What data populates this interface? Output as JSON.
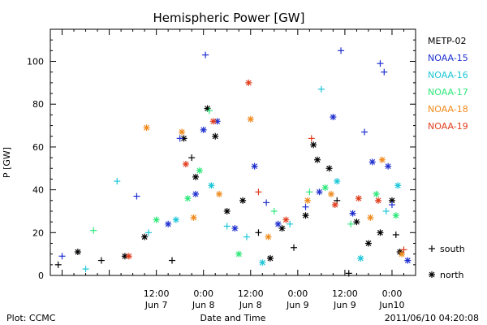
{
  "chart_data": {
    "type": "scatter",
    "title": "Hemispheric Power [GW]",
    "ylabel": "P [GW]",
    "xlabel": "Date and Time",
    "ylim": [
      0,
      115
    ],
    "xlim": [
      "2011-06-06 09:00",
      "2011-06-10 06:00"
    ],
    "y_ticks": [
      0,
      20,
      40,
      60,
      80,
      100
    ],
    "x_ticks": [
      {
        "time": "2011-06-07 12:00",
        "top": "12:00",
        "bottom": "Jun 7"
      },
      {
        "time": "2011-06-08 00:00",
        "top": "0:00",
        "bottom": "Jun 8"
      },
      {
        "time": "2011-06-08 12:00",
        "top": "12:00",
        "bottom": "Jun 8"
      },
      {
        "time": "2011-06-09 00:00",
        "top": "0:00",
        "bottom": "Jun 9"
      },
      {
        "time": "2011-06-09 12:00",
        "top": "12:00",
        "bottom": "Jun 9"
      },
      {
        "time": "2011-06-10 00:00",
        "top": "0:00",
        "bottom": "Jun10"
      }
    ],
    "legend": {
      "placement": "right"
    },
    "markers": {
      "south": "+",
      "north": "*"
    },
    "marker_legend": {
      "south": "south",
      "north": "north"
    },
    "series": [
      {
        "name": "METP-02",
        "color": "#000000",
        "points": [
          {
            "t": "2011-06-06 11:00",
            "v": 5,
            "h": "south"
          },
          {
            "t": "2011-06-06 16:00",
            "v": 11,
            "h": "north"
          },
          {
            "t": "2011-06-06 22:00",
            "v": 7,
            "h": "south"
          },
          {
            "t": "2011-06-07 04:00",
            "v": 9,
            "h": "north"
          },
          {
            "t": "2011-06-07 09:00",
            "v": 18,
            "h": "north"
          },
          {
            "t": "2011-06-07 16:00",
            "v": 7,
            "h": "south"
          },
          {
            "t": "2011-06-07 19:00",
            "v": 64,
            "h": "north"
          },
          {
            "t": "2011-06-07 21:00",
            "v": 55,
            "h": "south"
          },
          {
            "t": "2011-06-07 22:00",
            "v": 46,
            "h": "north"
          },
          {
            "t": "2011-06-08 01:00",
            "v": 78,
            "h": "north"
          },
          {
            "t": "2011-06-08 03:00",
            "v": 65,
            "h": "north"
          },
          {
            "t": "2011-06-08 06:00",
            "v": 30,
            "h": "north"
          },
          {
            "t": "2011-06-08 10:00",
            "v": 35,
            "h": "north"
          },
          {
            "t": "2011-06-08 14:00",
            "v": 20,
            "h": "south"
          },
          {
            "t": "2011-06-08 17:00",
            "v": 8,
            "h": "north"
          },
          {
            "t": "2011-06-08 20:00",
            "v": 22,
            "h": "north"
          },
          {
            "t": "2011-06-08 23:00",
            "v": 13,
            "h": "south"
          },
          {
            "t": "2011-06-09 02:00",
            "v": 28,
            "h": "north"
          },
          {
            "t": "2011-06-09 04:00",
            "v": 61,
            "h": "north"
          },
          {
            "t": "2011-06-09 05:00",
            "v": 54,
            "h": "north"
          },
          {
            "t": "2011-06-09 08:00",
            "v": 50,
            "h": "north"
          },
          {
            "t": "2011-06-09 10:00",
            "v": 35,
            "h": "south"
          },
          {
            "t": "2011-06-09 13:00",
            "v": 1,
            "h": "south"
          },
          {
            "t": "2011-06-09 15:00",
            "v": 25,
            "h": "north"
          },
          {
            "t": "2011-06-09 18:00",
            "v": 15,
            "h": "north"
          },
          {
            "t": "2011-06-09 21:00",
            "v": 20,
            "h": "north"
          },
          {
            "t": "2011-06-10 00:00",
            "v": 35,
            "h": "north"
          },
          {
            "t": "2011-06-10 01:00",
            "v": 19,
            "h": "south"
          },
          {
            "t": "2011-06-10 02:00",
            "v": 11,
            "h": "north"
          }
        ]
      },
      {
        "name": "NOAA-15",
        "color": "#1f2fcf",
        "points": [
          {
            "t": "2011-06-06 12:00",
            "v": 9,
            "h": "south"
          },
          {
            "t": "2011-06-07 07:00",
            "v": 37,
            "h": "south"
          },
          {
            "t": "2011-06-07 15:00",
            "v": 24,
            "h": "north"
          },
          {
            "t": "2011-06-07 18:00",
            "v": 64,
            "h": "south"
          },
          {
            "t": "2011-06-07 22:00",
            "v": 38,
            "h": "north"
          },
          {
            "t": "2011-06-08 00:00",
            "v": 68,
            "h": "north"
          },
          {
            "t": "2011-06-08 00:30",
            "v": 103,
            "h": "south"
          },
          {
            "t": "2011-06-08 03:30",
            "v": 72,
            "h": "north"
          },
          {
            "t": "2011-06-08 08:00",
            "v": 22,
            "h": "north"
          },
          {
            "t": "2011-06-08 13:00",
            "v": 51,
            "h": "north"
          },
          {
            "t": "2011-06-08 16:00",
            "v": 34,
            "h": "south"
          },
          {
            "t": "2011-06-08 19:00",
            "v": 24,
            "h": "north"
          },
          {
            "t": "2011-06-09 02:00",
            "v": 32,
            "h": "south"
          },
          {
            "t": "2011-06-09 05:30",
            "v": 39,
            "h": "north"
          },
          {
            "t": "2011-06-09 09:00",
            "v": 74,
            "h": "north"
          },
          {
            "t": "2011-06-09 11:00",
            "v": 105,
            "h": "south"
          },
          {
            "t": "2011-06-09 14:00",
            "v": 29,
            "h": "north"
          },
          {
            "t": "2011-06-09 17:00",
            "v": 67,
            "h": "south"
          },
          {
            "t": "2011-06-09 19:00",
            "v": 53,
            "h": "north"
          },
          {
            "t": "2011-06-09 21:00",
            "v": 99,
            "h": "south"
          },
          {
            "t": "2011-06-09 22:00",
            "v": 95,
            "h": "south"
          },
          {
            "t": "2011-06-09 23:00",
            "v": 51,
            "h": "north"
          },
          {
            "t": "2011-06-10 00:00",
            "v": 33,
            "h": "south"
          },
          {
            "t": "2011-06-10 04:00",
            "v": 7,
            "h": "north"
          }
        ]
      },
      {
        "name": "NOAA-16",
        "color": "#1cc6d8",
        "points": [
          {
            "t": "2011-06-06 18:00",
            "v": 3,
            "h": "south"
          },
          {
            "t": "2011-06-07 02:00",
            "v": 44,
            "h": "south"
          },
          {
            "t": "2011-06-07 10:00",
            "v": 20,
            "h": "south"
          },
          {
            "t": "2011-06-07 17:00",
            "v": 26,
            "h": "north"
          },
          {
            "t": "2011-06-08 02:00",
            "v": 42,
            "h": "north"
          },
          {
            "t": "2011-06-08 06:00",
            "v": 23,
            "h": "south"
          },
          {
            "t": "2011-06-08 11:00",
            "v": 18,
            "h": "south"
          },
          {
            "t": "2011-06-08 15:00",
            "v": 6,
            "h": "north"
          },
          {
            "t": "2011-06-08 22:00",
            "v": 24,
            "h": "south"
          },
          {
            "t": "2011-06-09 06:00",
            "v": 87,
            "h": "south"
          },
          {
            "t": "2011-06-09 10:00",
            "v": 44,
            "h": "north"
          },
          {
            "t": "2011-06-09 16:00",
            "v": 8,
            "h": "north"
          },
          {
            "t": "2011-06-09 22:30",
            "v": 30,
            "h": "south"
          },
          {
            "t": "2011-06-10 01:30",
            "v": 42,
            "h": "north"
          }
        ]
      },
      {
        "name": "NOAA-17",
        "color": "#2ee87a",
        "points": [
          {
            "t": "2011-06-06 20:00",
            "v": 21,
            "h": "south"
          },
          {
            "t": "2011-06-07 12:00",
            "v": 26,
            "h": "north"
          },
          {
            "t": "2011-06-07 20:00",
            "v": 36,
            "h": "north"
          },
          {
            "t": "2011-06-07 23:00",
            "v": 49,
            "h": "north"
          },
          {
            "t": "2011-06-08 01:30",
            "v": 77,
            "h": "south"
          },
          {
            "t": "2011-06-08 09:00",
            "v": 10,
            "h": "north"
          },
          {
            "t": "2011-06-08 18:00",
            "v": 30,
            "h": "south"
          },
          {
            "t": "2011-06-09 03:00",
            "v": 39,
            "h": "south"
          },
          {
            "t": "2011-06-09 07:00",
            "v": 41,
            "h": "north"
          },
          {
            "t": "2011-06-09 13:30",
            "v": 24,
            "h": "south"
          },
          {
            "t": "2011-06-09 20:00",
            "v": 38,
            "h": "north"
          },
          {
            "t": "2011-06-10 01:00",
            "v": 28,
            "h": "north"
          }
        ]
      },
      {
        "name": "NOAA-18",
        "color": "#f08a1c",
        "points": [
          {
            "t": "2011-06-07 09:30",
            "v": 69,
            "h": "north"
          },
          {
            "t": "2011-06-07 18:30",
            "v": 67,
            "h": "north"
          },
          {
            "t": "2011-06-07 21:30",
            "v": 27,
            "h": "north"
          },
          {
            "t": "2011-06-08 04:00",
            "v": 38,
            "h": "north"
          },
          {
            "t": "2011-06-08 12:00",
            "v": 73,
            "h": "north"
          },
          {
            "t": "2011-06-08 16:30",
            "v": 18,
            "h": "north"
          },
          {
            "t": "2011-06-09 02:30",
            "v": 35,
            "h": "north"
          },
          {
            "t": "2011-06-09 08:30",
            "v": 38,
            "h": "north"
          },
          {
            "t": "2011-06-09 18:30",
            "v": 27,
            "h": "north"
          },
          {
            "t": "2011-06-09 21:30",
            "v": 54,
            "h": "north"
          },
          {
            "t": "2011-06-10 02:30",
            "v": 10,
            "h": "north"
          }
        ]
      },
      {
        "name": "NOAA-19",
        "color": "#e03c1c",
        "points": [
          {
            "t": "2011-06-07 05:00",
            "v": 9,
            "h": "north"
          },
          {
            "t": "2011-06-07 19:30",
            "v": 52,
            "h": "north"
          },
          {
            "t": "2011-06-08 02:30",
            "v": 72,
            "h": "north"
          },
          {
            "t": "2011-06-08 11:30",
            "v": 90,
            "h": "north"
          },
          {
            "t": "2011-06-08 14:00",
            "v": 39,
            "h": "south"
          },
          {
            "t": "2011-06-08 21:00",
            "v": 26,
            "h": "north"
          },
          {
            "t": "2011-06-09 03:30",
            "v": 64,
            "h": "south"
          },
          {
            "t": "2011-06-09 09:30",
            "v": 33,
            "h": "north"
          },
          {
            "t": "2011-06-09 15:30",
            "v": 36,
            "h": "north"
          },
          {
            "t": "2011-06-09 20:30",
            "v": 35,
            "h": "north"
          },
          {
            "t": "2011-06-10 03:00",
            "v": 12,
            "h": "south"
          }
        ]
      }
    ]
  },
  "footer": {
    "left": "Plot: CCMC",
    "right": "2011/06/10 04:20:08"
  }
}
